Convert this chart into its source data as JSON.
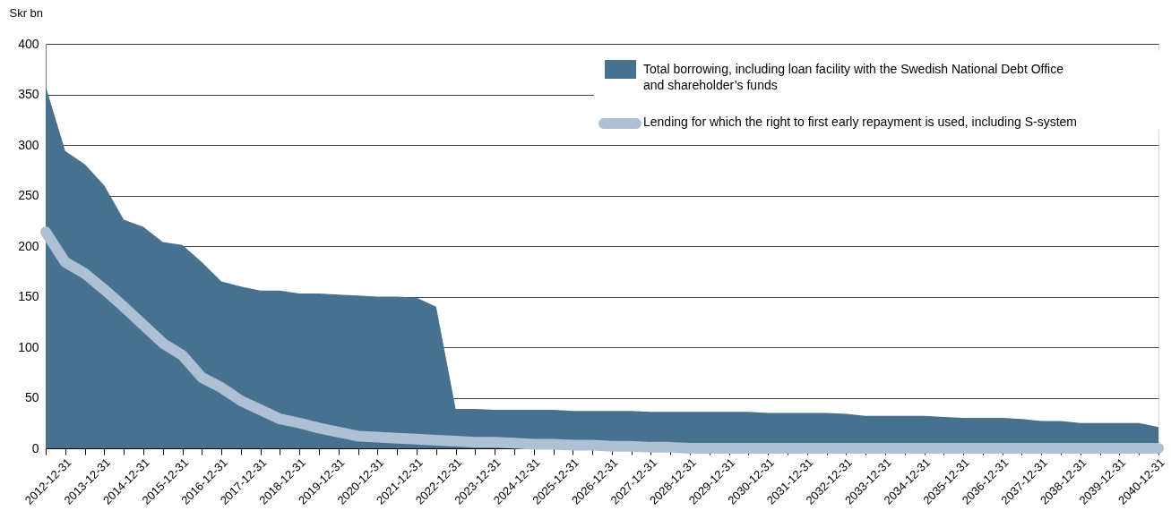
{
  "chart_data": {
    "type": "area",
    "ylabel": "Skr bn",
    "categories": [
      null,
      "2012-12-31",
      null,
      "2013-12-31",
      null,
      "2014-12-31",
      null,
      "2015-12-31",
      null,
      "2016-12-31",
      null,
      "2017-12-31",
      null,
      "2018-12-31",
      null,
      "2019-12-31",
      null,
      "2020-12-31",
      null,
      "2021-12-31",
      null,
      "2022-12-31",
      null,
      "2023-12-31",
      null,
      "2024-12-31",
      null,
      "2025-12-31",
      null,
      "2026-12-31",
      null,
      "2027-12-31",
      null,
      "2028-12-31",
      null,
      "2029-12-31",
      null,
      "2030-12-31",
      null,
      "2031-12-31",
      null,
      "2032-12-31",
      null,
      "2033-12-31",
      null,
      "2034-12-31",
      null,
      "2035-12-31",
      null,
      "2036-12-31",
      null,
      "2037-12-31",
      null,
      "2038-12-31",
      null,
      "2039-12-31",
      null,
      "2040-12-31"
    ],
    "series": [
      {
        "name": "Total borrowing, including loan facility with the Swedish National Debt Office and shareholder’s funds",
        "color": "#46718f",
        "values": [
          358,
          294,
          281,
          260,
          226,
          219,
          204,
          201,
          184,
          165,
          160,
          156,
          156,
          153,
          153,
          152,
          151,
          150,
          150,
          149,
          140,
          39,
          39,
          38,
          38,
          38,
          38,
          37,
          37,
          37,
          37,
          36,
          36,
          36,
          36,
          36,
          36,
          35,
          35,
          35,
          35,
          34,
          32,
          32,
          32,
          32,
          31,
          30,
          30,
          30,
          29,
          27,
          27,
          25,
          25,
          25,
          25,
          21
        ]
      },
      {
        "name": "Lending for which the right to first early repayment is used, including S-system",
        "type": "line",
        "color": "#aec0d4",
        "values": [
          214,
          184,
          173,
          157,
          140,
          122,
          104,
          92,
          70,
          60,
          47,
          38,
          29,
          25,
          20,
          16,
          12,
          11,
          10,
          9,
          8,
          7,
          6,
          6,
          5,
          4,
          4,
          3,
          3,
          2,
          2,
          1,
          1,
          0,
          0,
          0,
          0,
          0,
          0,
          0,
          0,
          0,
          0,
          0,
          0,
          0,
          0,
          0,
          0,
          0,
          0,
          0,
          0,
          0,
          0,
          0,
          0,
          0
        ]
      }
    ],
    "ylim": [
      0,
      400
    ],
    "yticks": [
      0,
      50,
      100,
      150,
      200,
      250,
      300,
      350,
      400
    ],
    "grid": "y",
    "legend": "top right",
    "line_style": "solid"
  }
}
